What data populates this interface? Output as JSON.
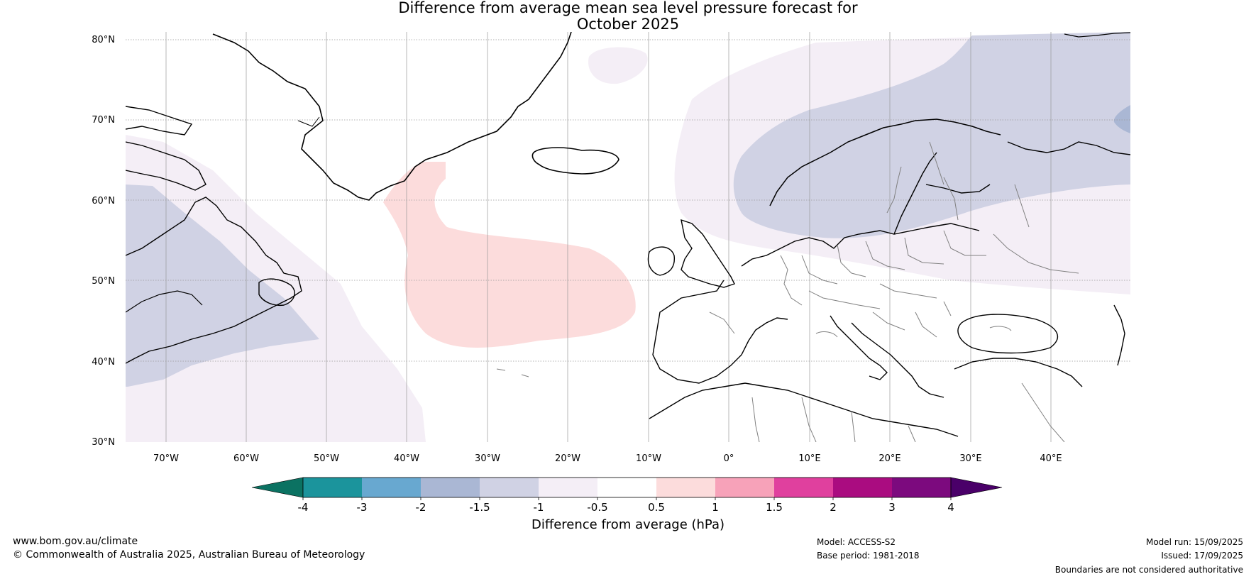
{
  "title": {
    "line1": "Difference from average mean sea level pressure forecast for",
    "line2": "October 2025"
  },
  "map": {
    "lat_labels": [
      "80°N",
      "70°N",
      "60°N",
      "50°N",
      "40°N",
      "30°N"
    ],
    "lon_labels": [
      "70°W",
      "60°W",
      "50°W",
      "40°W",
      "30°W",
      "20°W",
      "10°W",
      "0°",
      "10°E",
      "20°E",
      "30°E",
      "40°E"
    ],
    "colors": {
      "neg_1_to_0_5": "#f4eef6",
      "neg_1_5_to_1": "#d0d2e4",
      "neg_2_to_1_5": "#aab7d4",
      "pos_0_5_to_1": "#fcdcdc",
      "land_outline": "#000000",
      "border": "#808080"
    }
  },
  "colorbar": {
    "label": "Difference from average (hPa)",
    "ticks": [
      "-4",
      "-3",
      "-2",
      "-1.5",
      "-1",
      "-0.5",
      "0.5",
      "1",
      "1.5",
      "2",
      "3",
      "4"
    ],
    "colors": [
      "#0b7262",
      "#1b949c",
      "#68a8d0",
      "#aab7d4",
      "#d0d2e4",
      "#f4eef6",
      "#ffffff",
      "#fcdcdc",
      "#f7a2b9",
      "#e0409e",
      "#aa0c80",
      "#7c0a7e",
      "#4a0069"
    ]
  },
  "footer": {
    "website": "www.bom.gov.au/climate",
    "copyright": "© Commonwealth of Australia 2025, Australian Bureau of Meteorology",
    "model": "Model: ACCESS-S2",
    "base_period": "Base period: 1981-2018",
    "model_run": "Model run: 15/09/2025",
    "issued": "Issued: 17/09/2025",
    "disclaimer": "Boundaries are not considered authoritative"
  }
}
